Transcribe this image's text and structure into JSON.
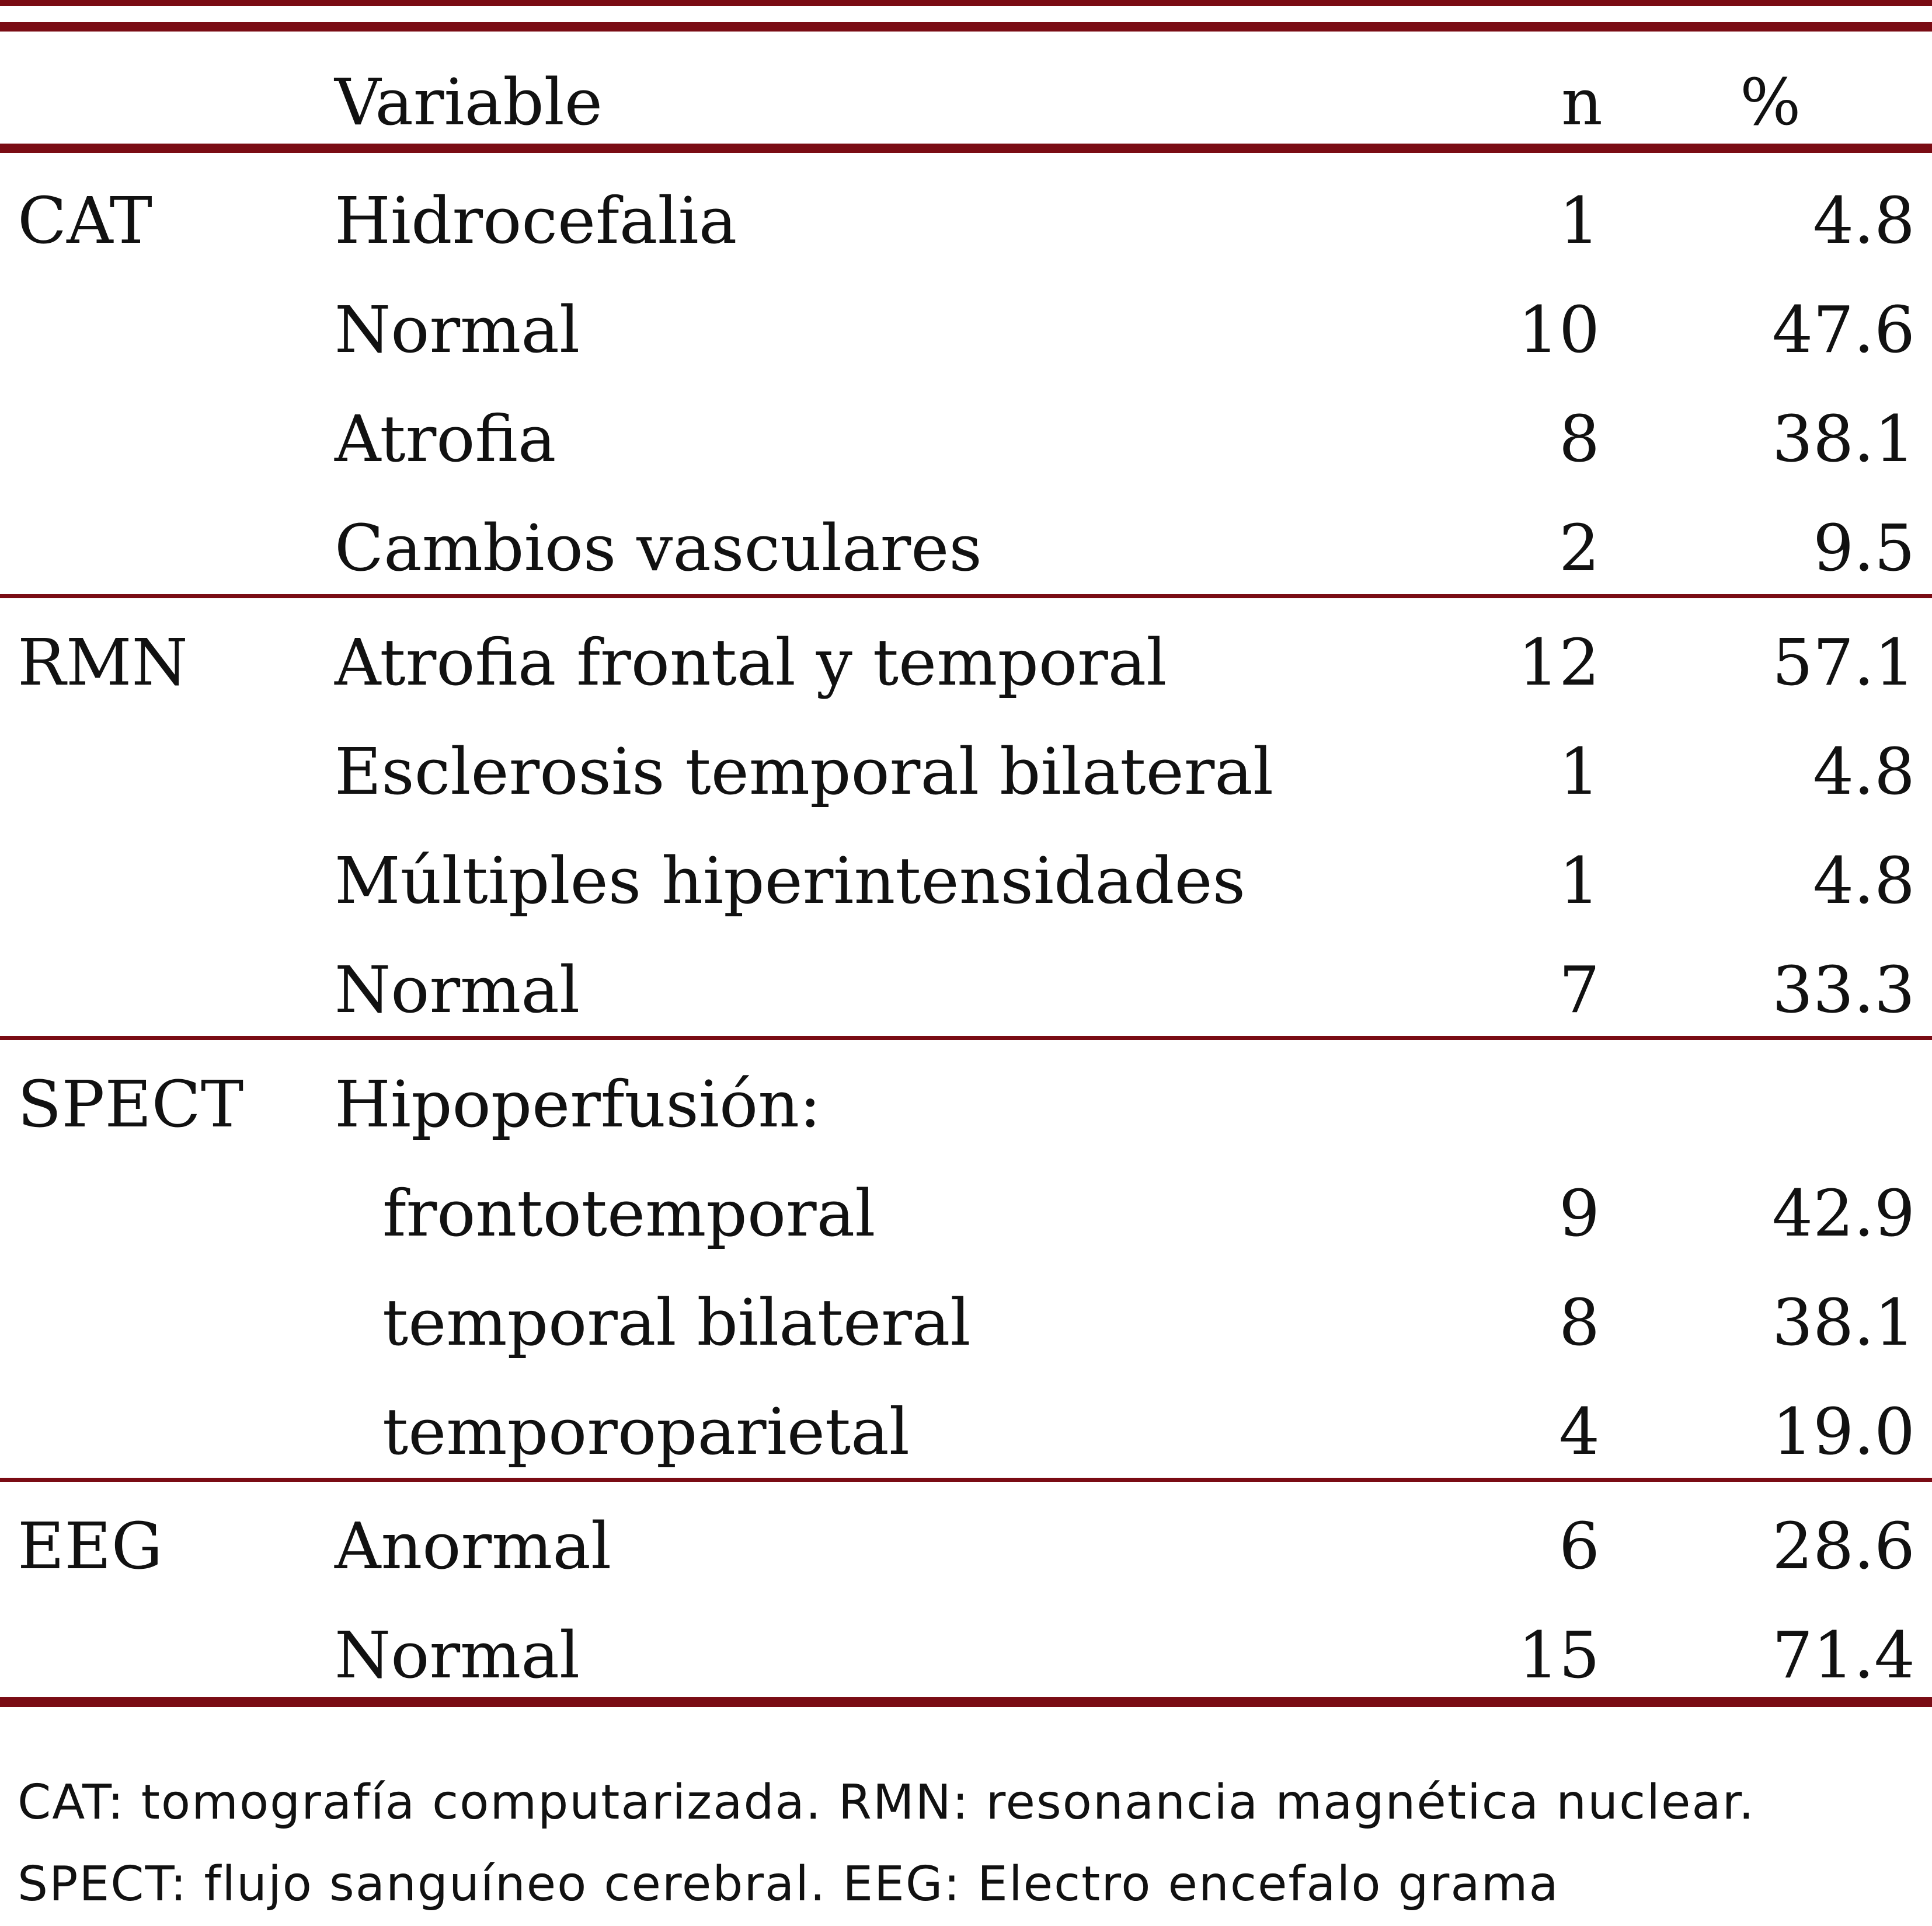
{
  "table": {
    "headers": {
      "variable": "Variable",
      "n": "n",
      "pct": "%"
    },
    "rows": [
      {
        "group": "CAT",
        "label": "Hidrocefalia",
        "n": "1",
        "pct": "4.8"
      },
      {
        "group": "",
        "label": "Normal",
        "n": "10",
        "pct": "47.6"
      },
      {
        "group": "",
        "label": "Atrofia",
        "n": "8",
        "pct": "38.1"
      },
      {
        "group": "",
        "label": "Cambios vasculares",
        "n": "2",
        "pct": "9.5"
      },
      {
        "group": "RMN",
        "label": "Atrofia frontal y temporal",
        "n": "12",
        "pct": "57.1"
      },
      {
        "group": "",
        "label": "Esclerosis temporal bilateral",
        "n": "1",
        "pct": "4.8"
      },
      {
        "group": "",
        "label": "Múltiples hiperintensidades",
        "n": "1",
        "pct": "4.8"
      },
      {
        "group": "",
        "label": "Normal",
        "n": "7",
        "pct": "33.3"
      },
      {
        "group": "SPECT",
        "label": "Hipoperfusión:",
        "n": "",
        "pct": ""
      },
      {
        "group": "",
        "label": "frontotemporal",
        "n": "9",
        "pct": "42.9"
      },
      {
        "group": "",
        "label": "temporal bilateral",
        "n": "8",
        "pct": "38.1"
      },
      {
        "group": "",
        "label": "temporoparietal",
        "n": "4",
        "pct": "19.0"
      },
      {
        "group": "EEG",
        "label": "Anormal",
        "n": "6",
        "pct": "28.6"
      },
      {
        "group": "",
        "label": "Normal",
        "n": "15",
        "pct": "71.4"
      }
    ]
  },
  "footnote": {
    "line1": "CAT: tomografía computarizada. RMN: resonancia magnética nuclear.",
    "line2": "SPECT: flujo sanguíneo cerebral. EEG: Electro encefalo grama"
  },
  "colors": {
    "rule": "#7a0c14",
    "text": "#111111"
  }
}
